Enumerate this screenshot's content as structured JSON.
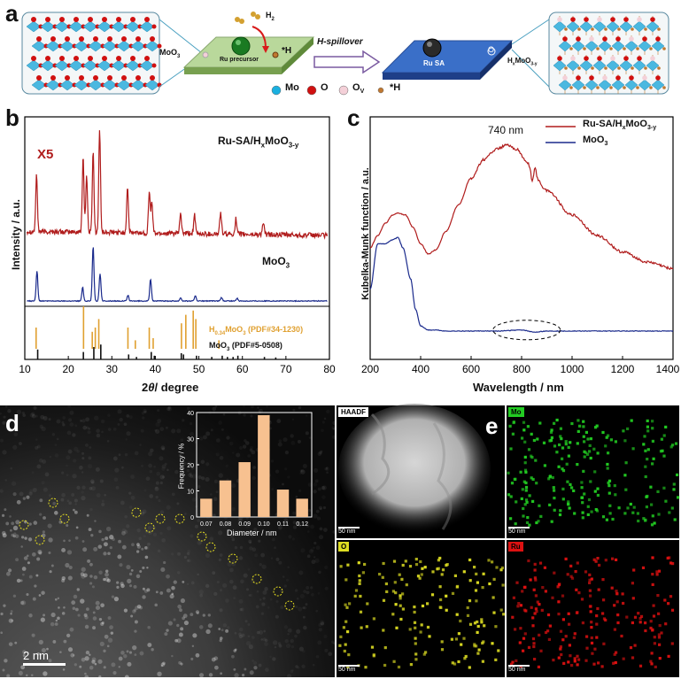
{
  "panel_a": {
    "letter": "a",
    "left_label": "MoO",
    "left_label_sub": "3",
    "h2_label": "H",
    "h2_sub": "2",
    "star_h_label": "*H",
    "precursor_label": "Ru precursor",
    "arrow_label": "H-spillover",
    "ru_sa_label": "Ru SA",
    "o_label": "O",
    "right_label": "H",
    "right_label_sub1": "x",
    "right_label_mid": "MoO",
    "right_label_sub2": "3-y",
    "legend": [
      {
        "symbol": "Mo",
        "color": "#1ab0e0"
      },
      {
        "symbol": "O",
        "color": "#d01010"
      },
      {
        "symbol": "O",
        "sub": "V",
        "color": "#f4d0d8"
      },
      {
        "symbol": "*H",
        "color": "#c07830"
      }
    ]
  },
  "panel_b": {
    "letter": "b",
    "xlabel_pre": "2",
    "xlabel_italic": "θ",
    "xlabel_post": "/ degree",
    "ylabel": "Intensity / a.u.",
    "x5_label": "X5",
    "colors": {
      "ru": "#b01c1c",
      "moo3": "#1a2a8c",
      "ref_h": "#e0a030",
      "ref_m": "#111111"
    }
  },
  "panel_c": {
    "letter": "c",
    "xlabel": "Wavelength / nm",
    "ylabel": "Kubelka-Munk function / a.u.",
    "peak_annotation": "740 nm",
    "colors": {
      "ru": "#b01c1c",
      "moo3": "#1a2a8c"
    }
  },
  "panel_d": {
    "letter": "d",
    "scalebar": "2 nm"
  },
  "panel_e": {
    "letter": "e",
    "maps": [
      {
        "label": "HAADF",
        "scale": "50 nm",
        "color": "#ffffff"
      },
      {
        "label": "Mo",
        "scale": "50 nm",
        "color": "#22cc22"
      },
      {
        "label": "O",
        "scale": "50 nm",
        "color": "#dddd22"
      },
      {
        "label": "Ru",
        "scale": "50 nm",
        "color": "#dd1111"
      }
    ]
  },
  "chart_data": [
    {
      "type": "line",
      "panel": "b",
      "xlabel": "2θ / degree",
      "ylabel": "Intensity / a.u.",
      "xlim": [
        10,
        80
      ],
      "xticks": [
        10,
        20,
        30,
        40,
        50,
        60,
        70,
        80
      ],
      "series": [
        {
          "name": "Ru-SA/HxMoO3-y",
          "color": "#b01c1c",
          "peaks": [
            [
              12.7,
              0.55
            ],
            [
              23.4,
              0.75
            ],
            [
              24.2,
              0.55
            ],
            [
              25.7,
              0.8
            ],
            [
              27.2,
              1.0
            ],
            [
              33.6,
              0.45
            ],
            [
              38.6,
              0.42
            ],
            [
              39.2,
              0.3
            ],
            [
              45.8,
              0.2
            ],
            [
              49.0,
              0.18
            ],
            [
              55.0,
              0.22
            ],
            [
              58.5,
              0.15
            ],
            [
              64.8,
              0.12
            ]
          ]
        },
        {
          "name": "MoO3",
          "color": "#1a2a8c",
          "peaks": [
            [
              12.8,
              0.55
            ],
            [
              23.3,
              0.25
            ],
            [
              25.7,
              1.0
            ],
            [
              27.3,
              0.5
            ],
            [
              33.7,
              0.1
            ],
            [
              38.9,
              0.4
            ],
            [
              45.8,
              0.06
            ],
            [
              49.2,
              0.1
            ],
            [
              55.2,
              0.06
            ],
            [
              58.8,
              0.05
            ]
          ]
        },
        {
          "name": "H0.34MoO3 (PDF#34-1230)",
          "color": "#e0a030",
          "type": "stick",
          "peaks": [
            [
              12.6,
              0.5
            ],
            [
              23.5,
              1.0
            ],
            [
              25.5,
              0.4
            ],
            [
              26.2,
              0.5
            ],
            [
              27.0,
              0.7
            ],
            [
              33.7,
              0.5
            ],
            [
              35.4,
              0.2
            ],
            [
              38.6,
              0.5
            ],
            [
              39.5,
              0.25
            ],
            [
              46.0,
              0.6
            ],
            [
              47.0,
              0.8
            ],
            [
              48.7,
              0.9
            ],
            [
              49.3,
              0.7
            ],
            [
              54.6,
              0.2
            ]
          ]
        },
        {
          "name": "MoO3 (PDF#5-0508)",
          "color": "#111111",
          "type": "stick",
          "peaks": [
            [
              12.8,
              0.4
            ],
            [
              23.3,
              0.3
            ],
            [
              25.7,
              0.5
            ],
            [
              27.3,
              0.6
            ],
            [
              33.7,
              0.2
            ],
            [
              35.5,
              0.1
            ],
            [
              38.9,
              0.3
            ],
            [
              39.6,
              0.15
            ],
            [
              45.8,
              0.25
            ],
            [
              46.3,
              0.2
            ],
            [
              49.3,
              0.15
            ],
            [
              52.8,
              0.1
            ],
            [
              55.2,
              0.15
            ],
            [
              56.4,
              0.1
            ],
            [
              57.7,
              0.1
            ],
            [
              58.8,
              0.15
            ],
            [
              64.9,
              0.1
            ],
            [
              67.5,
              0.08
            ]
          ]
        }
      ]
    },
    {
      "type": "line",
      "panel": "c",
      "xlabel": "Wavelength / nm",
      "ylabel": "Kubelka-Munk function / a.u.",
      "xlim": [
        200,
        1400
      ],
      "xticks": [
        200,
        400,
        600,
        800,
        1000,
        1200,
        1400
      ],
      "series": [
        {
          "name": "Ru-SA/HxMoO3-y",
          "color": "#b01c1c",
          "x": [
            200,
            230,
            260,
            290,
            310,
            340,
            370,
            400,
            430,
            460,
            500,
            550,
            600,
            650,
            700,
            740,
            780,
            820,
            850,
            900,
            1000,
            1100,
            1200,
            1300,
            1400
          ],
          "y": [
            0.5,
            0.56,
            0.62,
            0.66,
            0.67,
            0.66,
            0.6,
            0.52,
            0.47,
            0.49,
            0.58,
            0.71,
            0.84,
            0.93,
            0.98,
            1.0,
            0.98,
            0.92,
            0.85,
            0.78,
            0.66,
            0.56,
            0.48,
            0.43,
            0.4
          ]
        },
        {
          "name": "MoO3",
          "color": "#1a2a8c",
          "x": [
            200,
            230,
            260,
            290,
            310,
            330,
            360,
            380,
            400,
            430,
            460,
            500,
            600,
            700,
            800,
            850,
            900,
            1000,
            1200,
            1400
          ],
          "y": [
            0.3,
            0.52,
            0.52,
            0.54,
            0.55,
            0.5,
            0.35,
            0.2,
            0.12,
            0.1,
            0.1,
            0.095,
            0.095,
            0.095,
            0.1,
            0.09,
            0.095,
            0.095,
            0.095,
            0.095
          ]
        }
      ]
    },
    {
      "type": "bar",
      "panel": "d-inset",
      "xlabel": "Diameter / nm",
      "ylabel": "Frequency / %",
      "ylim": [
        0,
        40
      ],
      "yticks": [
        0,
        10,
        20,
        30,
        40
      ],
      "categories": [
        "0.07",
        "0.08",
        "0.09",
        "0.10",
        "0.11",
        "0.12"
      ],
      "values": [
        7,
        14,
        21,
        39,
        10.5,
        7
      ],
      "color": "#f7c190"
    }
  ]
}
